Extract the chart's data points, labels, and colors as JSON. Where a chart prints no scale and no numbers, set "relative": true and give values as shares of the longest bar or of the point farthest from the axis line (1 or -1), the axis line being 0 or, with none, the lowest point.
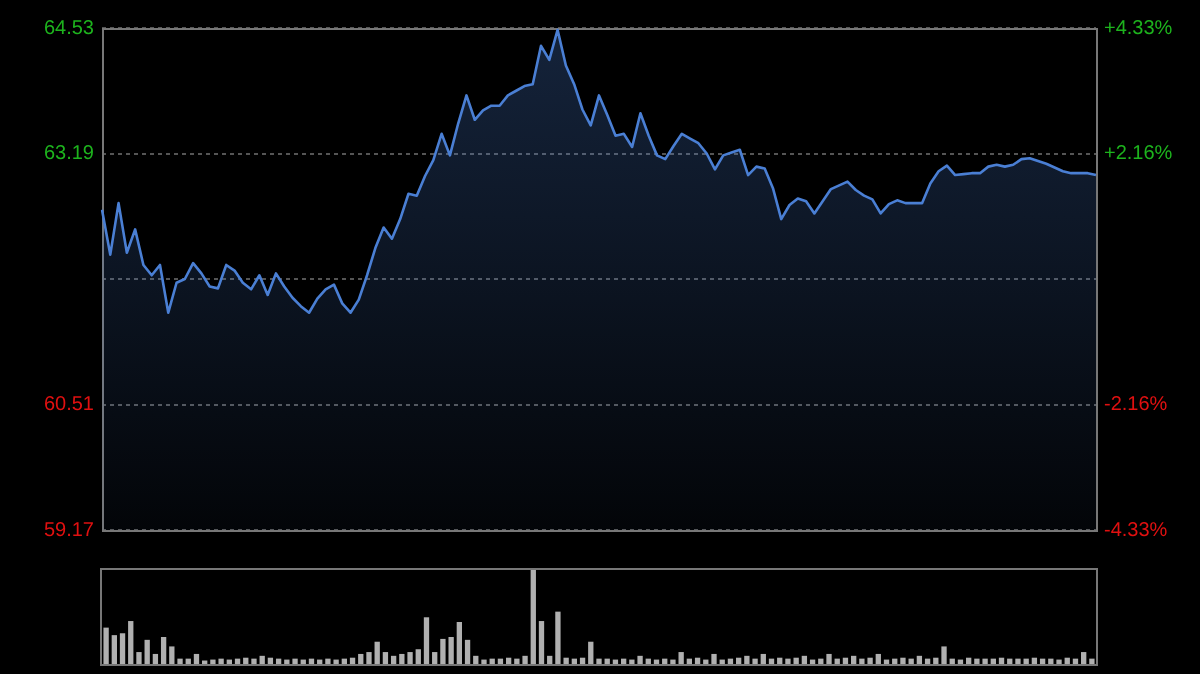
{
  "chart_data": [
    {
      "type": "area",
      "categories": [
        null,
        null,
        null,
        null,
        null,
        null,
        null,
        null,
        null,
        null,
        null,
        null,
        null,
        null,
        null,
        null,
        null,
        null,
        null,
        null,
        null,
        null,
        null,
        null,
        null,
        null,
        null,
        null,
        null,
        null,
        null,
        null,
        null,
        null,
        null,
        null,
        null,
        null,
        null,
        null,
        null,
        null,
        null,
        null,
        null,
        null,
        null,
        null,
        null,
        null,
        null,
        null,
        null,
        null,
        null,
        null,
        null,
        null,
        null,
        null,
        null,
        null,
        null,
        null,
        null,
        null,
        null,
        null,
        null,
        null,
        null,
        null,
        null,
        null,
        null,
        null,
        null,
        null,
        null,
        null,
        null,
        null,
        null,
        null,
        null,
        null,
        null,
        null,
        null,
        null,
        null,
        null,
        null,
        null,
        null,
        null,
        null,
        null,
        null,
        null,
        null,
        null,
        null,
        null,
        null,
        null,
        null,
        null,
        null,
        null,
        null,
        null,
        null,
        null,
        null,
        null,
        null,
        null,
        null,
        null,
        null
      ],
      "series": [
        {
          "color": "#4a7fd4",
          "values": [
            62.59,
            62.11,
            62.66,
            62.13,
            62.38,
            62.0,
            61.89,
            62.0,
            61.49,
            61.81,
            61.85,
            62.02,
            61.91,
            61.77,
            61.75,
            62.0,
            61.94,
            61.81,
            61.74,
            61.89,
            61.68,
            61.91,
            61.77,
            61.65,
            61.56,
            61.49,
            61.64,
            61.74,
            61.79,
            61.59,
            61.49,
            61.63,
            61.89,
            62.18,
            62.4,
            62.28,
            62.49,
            62.76,
            62.74,
            62.95,
            63.12,
            63.4,
            63.17,
            63.51,
            63.81,
            63.55,
            63.65,
            63.7,
            63.7,
            63.81,
            63.86,
            63.91,
            63.93,
            64.34,
            64.19,
            64.51,
            64.13,
            63.93,
            63.66,
            63.49,
            63.81,
            63.6,
            63.38,
            63.4,
            63.26,
            63.62,
            63.38,
            63.17,
            63.13,
            63.27,
            63.4,
            63.35,
            63.3,
            63.19,
            63.02,
            63.17,
            63.2,
            63.23,
            62.96,
            63.05,
            63.03,
            62.82,
            62.49,
            62.64,
            62.71,
            62.68,
            62.55,
            62.68,
            62.81,
            62.85,
            62.89,
            62.8,
            62.74,
            62.7,
            62.55,
            62.65,
            62.69,
            62.66,
            62.66,
            62.66,
            62.87,
            63.0,
            63.06,
            62.96,
            62.97,
            62.98,
            62.98,
            63.05,
            63.07,
            63.05,
            63.07,
            63.13,
            63.14,
            63.11,
            63.08,
            63.04,
            63.0,
            62.98,
            62.98,
            62.98,
            62.96
          ]
        }
      ],
      "ylim": [
        59.17,
        64.53
      ],
      "yticks": [
        64.53,
        63.19,
        {
          "value": 61.85,
          "label": null
        },
        60.51,
        59.17
      ],
      "y2lim": [
        -4.33,
        4.33
      ],
      "y2ticks": [
        {
          "value": 4.33,
          "label": "+4.33%"
        },
        {
          "value": 2.16,
          "label": "+2.16%"
        },
        {
          "value": -2.16,
          "label": "-2.16%"
        },
        {
          "value": -4.33,
          "label": "-4.33%"
        }
      ],
      "tick_labels": "y",
      "grid": true,
      "legend": false,
      "marker": "none",
      "line_style": "solid"
    },
    {
      "type": "bar",
      "relative": true,
      "color": "#b0b0b0",
      "tick_labels": false,
      "legend": false,
      "categories": [
        null,
        null,
        null,
        null,
        null,
        null,
        null,
        null,
        null,
        null,
        null,
        null,
        null,
        null,
        null,
        null,
        null,
        null,
        null,
        null,
        null,
        null,
        null,
        null,
        null,
        null,
        null,
        null,
        null,
        null,
        null,
        null,
        null,
        null,
        null,
        null,
        null,
        null,
        null,
        null,
        null,
        null,
        null,
        null,
        null,
        null,
        null,
        null,
        null,
        null,
        null,
        null,
        null,
        null,
        null,
        null,
        null,
        null,
        null,
        null,
        null,
        null,
        null,
        null,
        null,
        null,
        null,
        null,
        null,
        null,
        null,
        null,
        null,
        null,
        null,
        null,
        null,
        null,
        null,
        null,
        null,
        null,
        null,
        null,
        null,
        null,
        null,
        null,
        null,
        null,
        null,
        null,
        null,
        null,
        null,
        null,
        null,
        null,
        null,
        null,
        null,
        null,
        null,
        null,
        null,
        null,
        null,
        null,
        null,
        null,
        null,
        null,
        null,
        null,
        null,
        null,
        null,
        null,
        null,
        null,
        null
      ],
      "values": [
        0.38,
        0.3,
        0.32,
        0.45,
        0.12,
        0.25,
        0.1,
        0.28,
        0.18,
        0.05,
        0.05,
        0.1,
        0.03,
        0.04,
        0.05,
        0.04,
        0.05,
        0.06,
        0.05,
        0.08,
        0.06,
        0.05,
        0.04,
        0.05,
        0.04,
        0.05,
        0.04,
        0.05,
        0.04,
        0.05,
        0.06,
        0.1,
        0.12,
        0.23,
        0.12,
        0.08,
        0.1,
        0.12,
        0.15,
        0.49,
        0.12,
        0.26,
        0.28,
        0.44,
        0.25,
        0.08,
        0.04,
        0.05,
        0.05,
        0.06,
        0.05,
        0.08,
        1,
        0.45,
        0.08,
        0.55,
        0.06,
        0.05,
        0.06,
        0.23,
        0.05,
        0.05,
        0.04,
        0.05,
        0.04,
        0.08,
        0.05,
        0.04,
        0.05,
        0.04,
        0.12,
        0.05,
        0.06,
        0.04,
        0.1,
        0.04,
        0.05,
        0.06,
        0.08,
        0.05,
        0.1,
        0.05,
        0.06,
        0.05,
        0.06,
        0.08,
        0.04,
        0.05,
        0.1,
        0.05,
        0.06,
        0.08,
        0.05,
        0.06,
        0.1,
        0.04,
        0.05,
        0.06,
        0.05,
        0.08,
        0.05,
        0.06,
        0.18,
        0.05,
        0.04,
        0.06,
        0.05,
        0.05,
        0.05,
        0.06,
        0.05,
        0.05,
        0.05,
        0.06,
        0.05,
        0.05,
        0.04,
        0.06,
        0.05,
        0.12,
        0.05
      ]
    }
  ]
}
